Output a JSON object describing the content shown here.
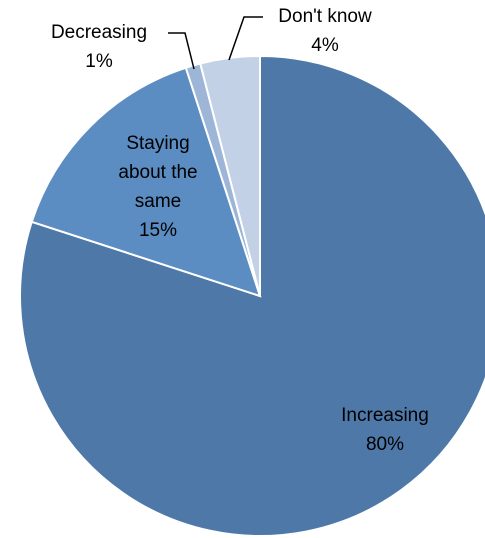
{
  "chart_data": {
    "type": "pie",
    "start_angle_deg": 0,
    "direction": "clockwise",
    "slices": [
      {
        "label": "Increasing",
        "value": 80,
        "value_label": "80%",
        "color": "#4E78A8"
      },
      {
        "label": "Staying about the same",
        "label_lines": [
          "Staying",
          "about the",
          "same"
        ],
        "value": 15,
        "value_label": "15%",
        "color": "#5B8CC2"
      },
      {
        "label": "Decreasing",
        "value": 1,
        "value_label": "1%",
        "color": "#9DB5D6"
      },
      {
        "label": "Don't know",
        "value": 4,
        "value_label": "4%",
        "color": "#C3D1E6"
      }
    ]
  }
}
